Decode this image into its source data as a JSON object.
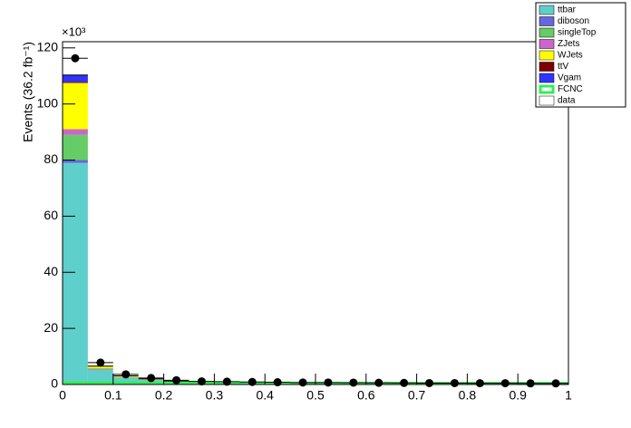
{
  "chart_data": {
    "type": "stacked_histogram",
    "y_label": "Events (36.2 fb⁻¹)",
    "y_multiplier": "×10³",
    "bins": [
      0,
      0.05,
      0.1,
      0.15,
      0.2,
      0.25,
      0.3,
      0.35,
      0.4,
      0.45,
      0.5,
      0.55,
      0.6,
      0.65,
      0.7,
      0.75,
      0.8,
      0.85,
      0.9,
      0.95,
      1
    ],
    "xlim": [
      0,
      1
    ],
    "xticks": [
      0,
      0.1,
      0.2,
      0.3,
      0.4,
      0.5,
      0.6,
      0.7,
      0.8,
      0.9,
      1
    ],
    "ylim": [
      0,
      122.2
    ],
    "yticks": [
      0,
      20,
      40,
      60,
      80,
      100,
      120
    ],
    "series": [
      {
        "name": "ttbar",
        "color": "#5fcfcc",
        "values": [
          79,
          5.0,
          2.3,
          1.5,
          0.9,
          0.6,
          0.5,
          0.45,
          0.4,
          0.35,
          0.3,
          0.3,
          0.28,
          0.25,
          0.25,
          0.22,
          0.2,
          0.2,
          0.2,
          0.18
        ]
      },
      {
        "name": "diboson",
        "color": "#6666dd",
        "values": [
          1,
          0.1,
          0.05,
          0.03,
          0.02,
          0.02,
          0.01,
          0.01,
          0.01,
          0.01,
          0.01,
          0.01,
          0.01,
          0.01,
          0.01,
          0.01,
          0.01,
          0.01,
          0.01,
          0.01
        ]
      },
      {
        "name": "singleTop",
        "color": "#66cc66",
        "values": [
          9,
          0.5,
          0.25,
          0.15,
          0.1,
          0.08,
          0.06,
          0.05,
          0.05,
          0.04,
          0.04,
          0.04,
          0.03,
          0.03,
          0.03,
          0.03,
          0.03,
          0.03,
          0.02,
          0.02
        ]
      },
      {
        "name": "ZJets",
        "color": "#cc66cc",
        "values": [
          2,
          0.2,
          0.1,
          0.05,
          0.04,
          0.03,
          0.02,
          0.02,
          0.02,
          0.02,
          0.02,
          0.02,
          0.02,
          0.02,
          0.02,
          0.02,
          0.02,
          0.02,
          0.02,
          0.02
        ]
      },
      {
        "name": "WJets",
        "color": "#ffff00",
        "values": [
          16.5,
          0.6,
          0.3,
          0.2,
          0.12,
          0.08,
          0.06,
          0.05,
          0.05,
          0.04,
          0.04,
          0.04,
          0.03,
          0.03,
          0.03,
          0.03,
          0.03,
          0.03,
          0.03,
          0.03
        ]
      },
      {
        "name": "ttV",
        "color": "#7f0000",
        "values": [
          0.3,
          0.05,
          0.03,
          0.02,
          0.02,
          0.01,
          0.01,
          0.01,
          0.01,
          0.01,
          0.01,
          0.01,
          0.01,
          0.01,
          0.01,
          0.01,
          0.01,
          0.01,
          0.01,
          0.01
        ]
      },
      {
        "name": "Vgam",
        "color": "#3333ff",
        "values": [
          2.5,
          0.1,
          0.05,
          0.03,
          0.02,
          0.02,
          0.01,
          0.01,
          0.01,
          0.01,
          0.01,
          0.01,
          0.01,
          0.01,
          0.01,
          0.01,
          0.01,
          0.01,
          0.01,
          0.01
        ]
      }
    ],
    "signal": {
      "name": "FCNC",
      "color": "#33ee55",
      "values": [
        0.6,
        0.6,
        0.55,
        0.5,
        0.5,
        0.5,
        0.45,
        0.45,
        0.45,
        0.4,
        0.4,
        0.4,
        0.4,
        0.4,
        0.4,
        0.4,
        0.4,
        0.4,
        0.4,
        0.4
      ]
    },
    "data": {
      "name": "data",
      "color": "#000000",
      "values": [
        116.3,
        7.8,
        3.6,
        2.3,
        1.5,
        1.1,
        1.0,
        0.9,
        0.8,
        0.7,
        0.7,
        0.65,
        0.6,
        0.55,
        0.5,
        0.5,
        0.45,
        0.45,
        0.4,
        0.4
      ]
    }
  }
}
